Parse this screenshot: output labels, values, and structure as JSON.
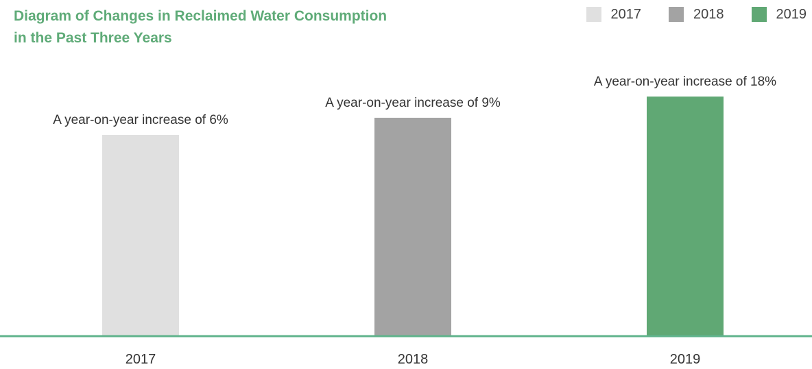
{
  "chart_data": {
    "type": "bar",
    "title_lines": [
      "Diagram of Changes in Reclaimed Water Consumption",
      "in the Past Three Years"
    ],
    "categories": [
      "2017",
      "2018",
      "2019"
    ],
    "values": [
      6,
      9,
      18
    ],
    "bar_labels": [
      "A year-on-year increase of 6%",
      "A year-on-year increase of 9%",
      "A year-on-year increase of 18%"
    ],
    "colors": [
      "#e0e0e0",
      "#a3a3a3",
      "#60a874"
    ],
    "axis_color": "#60b38c",
    "legend": {
      "placement": "top-right",
      "entries": [
        {
          "label": "2017",
          "color": "#e0e0e0"
        },
        {
          "label": "2018",
          "color": "#a3a3a3"
        },
        {
          "label": "2019",
          "color": "#60a874"
        }
      ]
    },
    "grid": false
  }
}
